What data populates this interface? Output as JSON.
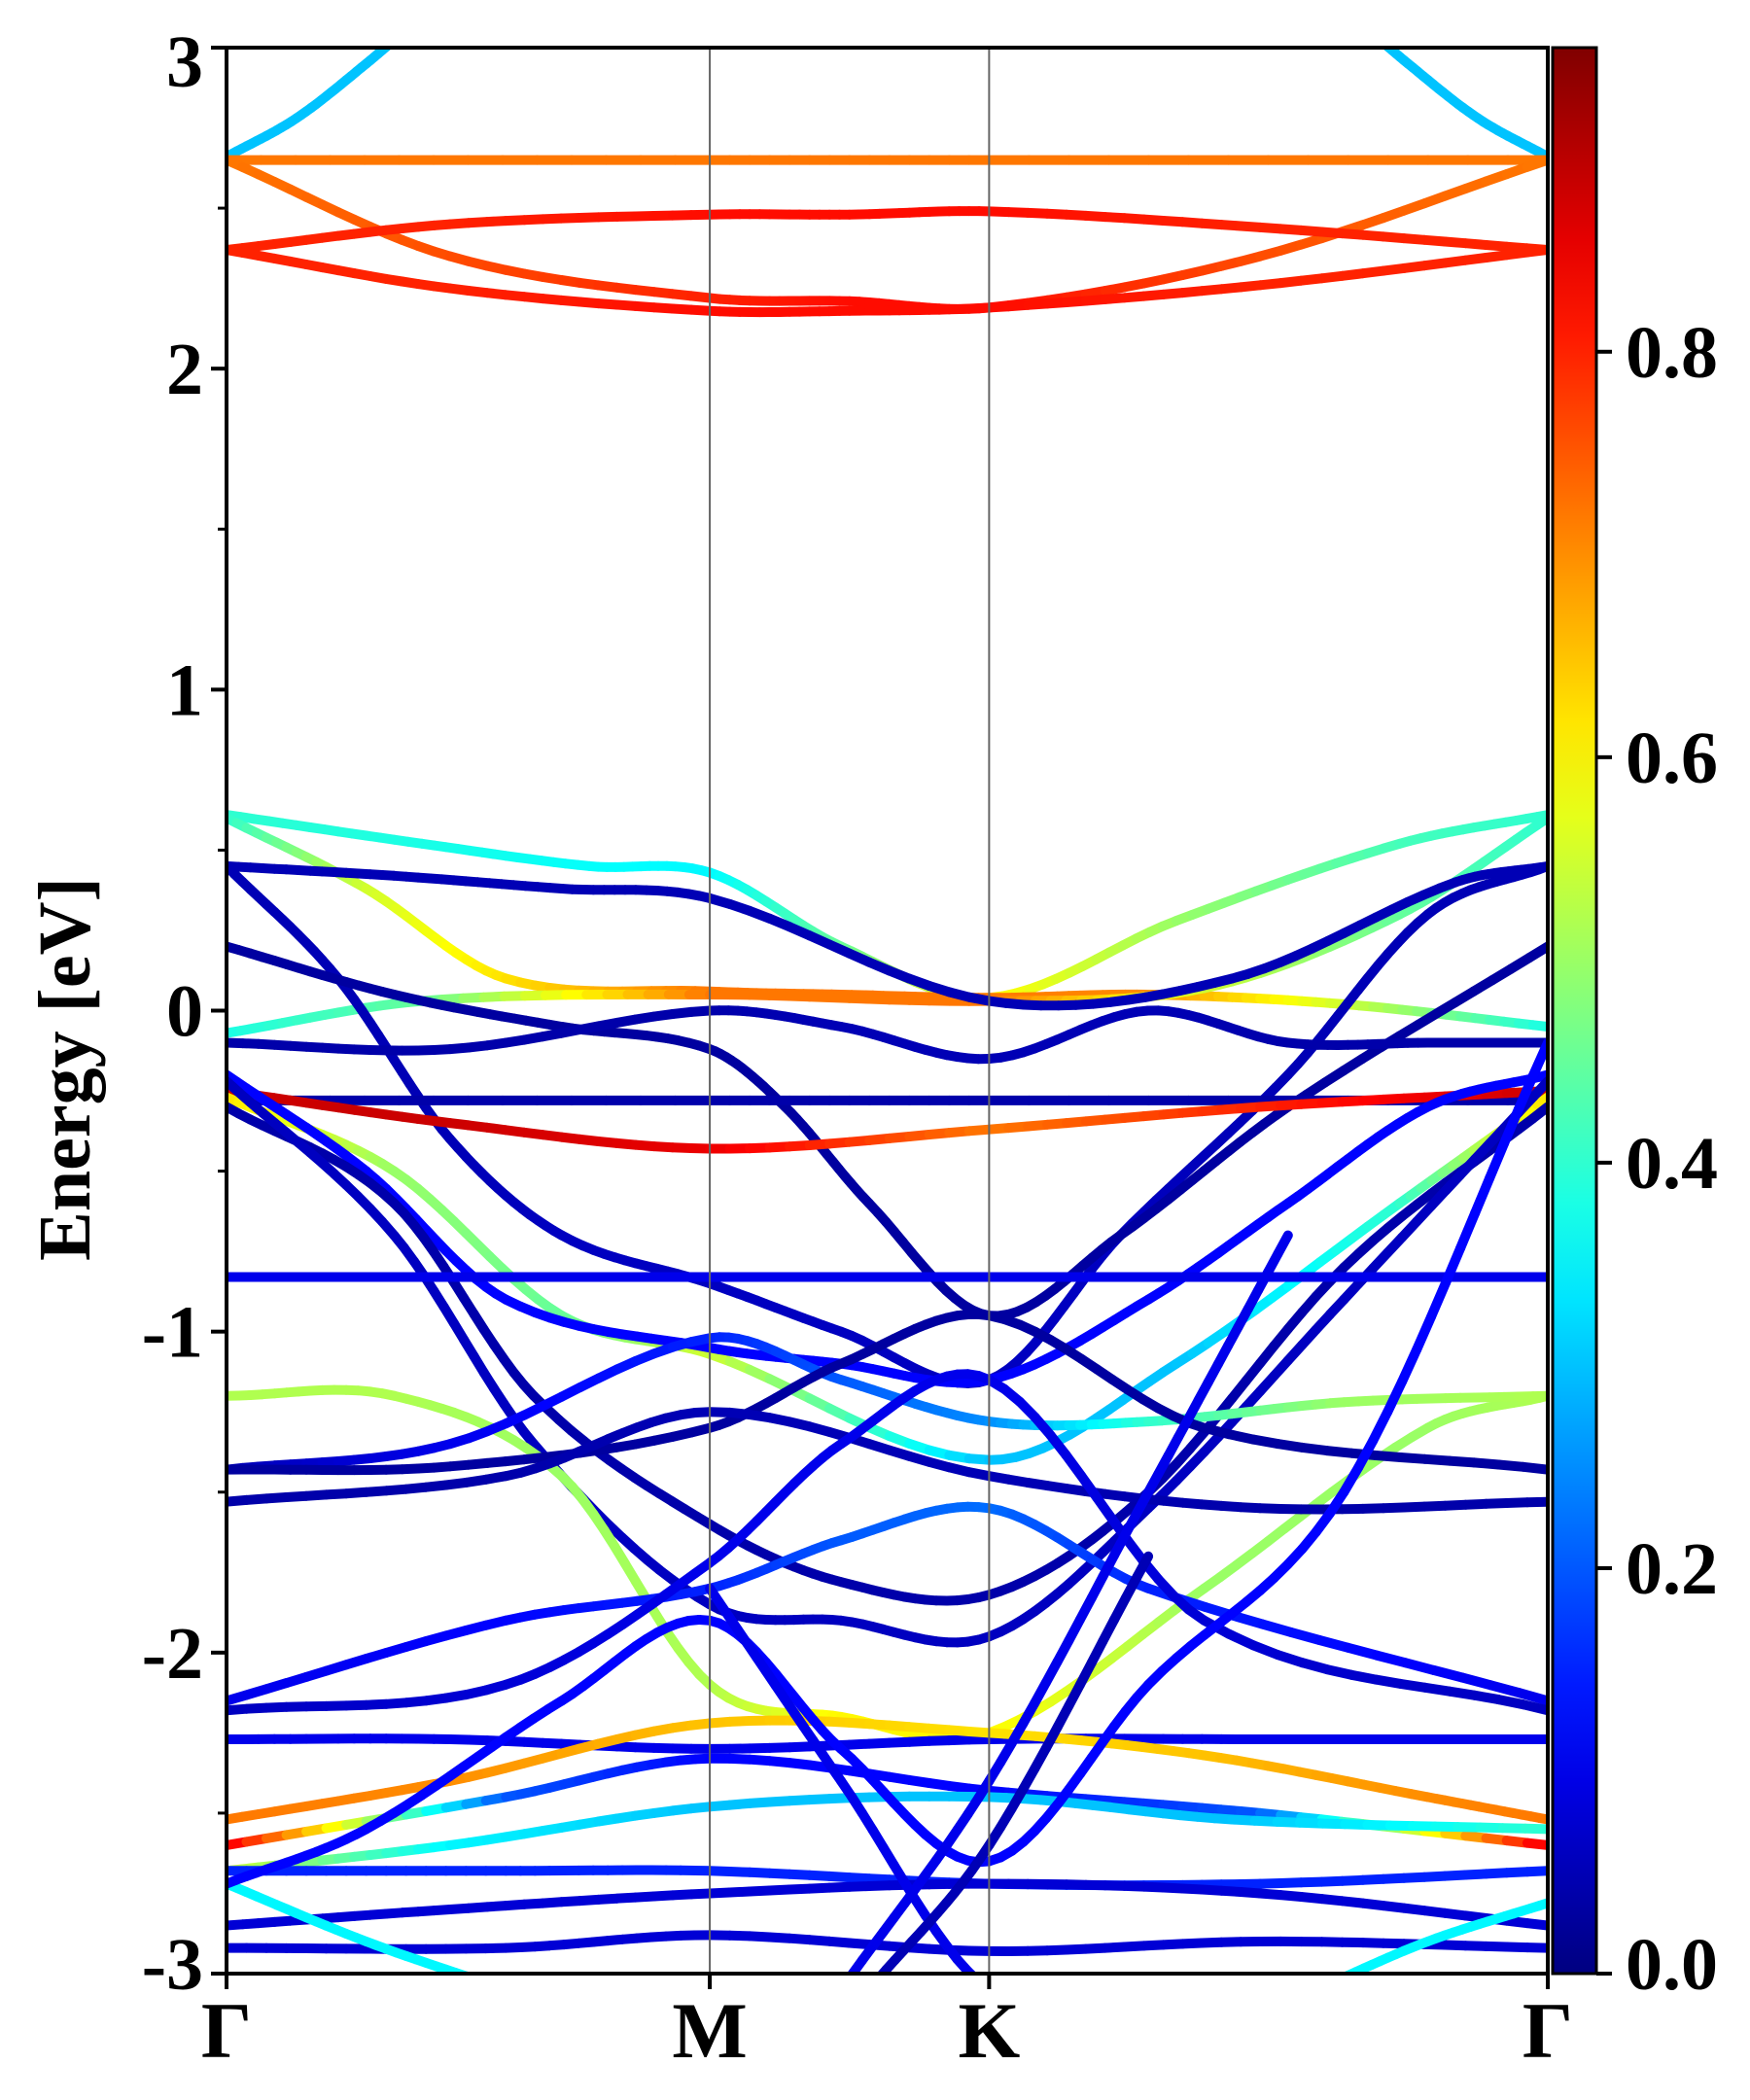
{
  "chart_data": {
    "type": "line",
    "subtype": "electronic band structure, color-weighted",
    "title": "",
    "xlabel": "",
    "ylabel": "Energy [eV]",
    "ylim": [
      -3,
      3
    ],
    "xlim": [
      0,
      4.73
    ],
    "y_ticks": [
      {
        "value": 3,
        "label": "3"
      },
      {
        "value": 2,
        "label": "2"
      },
      {
        "value": 1,
        "label": "1"
      },
      {
        "value": 0,
        "label": "0"
      },
      {
        "value": -1,
        "label": "-1"
      },
      {
        "value": -2,
        "label": "-2"
      },
      {
        "value": -3,
        "label": "-3"
      }
    ],
    "y_minor_step": 0.5,
    "x_ticks": [
      {
        "value": 0.0,
        "label": "Γ"
      },
      {
        "value": 1.73,
        "label": "M"
      },
      {
        "value": 2.73,
        "label": "K"
      },
      {
        "value": 4.73,
        "label": "Γ"
      }
    ],
    "vertical_lines_at": [
      1.73,
      2.73
    ],
    "grid": false,
    "legend": "none",
    "colorbar": {
      "colormap": "jet",
      "range": [
        0,
        0.95
      ],
      "ticks": [
        {
          "value": 0.0,
          "label": "0.0"
        },
        {
          "value": 0.2,
          "label": "0.2"
        },
        {
          "value": 0.4,
          "label": "0.4"
        },
        {
          "value": 0.6,
          "label": "0.6"
        },
        {
          "value": 0.8,
          "label": "0.8"
        }
      ]
    },
    "series": [
      {
        "x": [
          0,
          0.25,
          0.5,
          0.7
        ],
        "y": [
          2.66,
          2.78,
          2.95,
          3.1
        ],
        "w": [
          0.3,
          0.3,
          0.3,
          0.3
        ]
      },
      {
        "x": [
          4.73,
          4.48,
          4.23,
          4.03
        ],
        "y": [
          2.66,
          2.78,
          2.95,
          3.1
        ],
        "w": [
          0.3,
          0.3,
          0.3,
          0.3
        ]
      },
      {
        "x": [
          0,
          1.73,
          2.73,
          4.73
        ],
        "y": [
          2.65,
          2.65,
          2.65,
          2.65
        ],
        "w": [
          0.72,
          0.72,
          0.72,
          0.72
        ]
      },
      {
        "x": [
          0,
          0.8,
          1.73,
          2.23,
          2.73,
          3.7,
          4.73
        ],
        "y": [
          2.65,
          2.35,
          2.22,
          2.21,
          2.19,
          2.35,
          2.65
        ],
        "w": [
          0.72,
          0.76,
          0.8,
          0.82,
          0.82,
          0.76,
          0.72
        ]
      },
      {
        "x": [
          0,
          0.8,
          1.73,
          2.23,
          2.73,
          3.7,
          4.73
        ],
        "y": [
          2.37,
          2.45,
          2.48,
          2.48,
          2.49,
          2.44,
          2.37
        ],
        "w": [
          0.8,
          0.8,
          0.82,
          0.82,
          0.82,
          0.8,
          0.8
        ]
      },
      {
        "x": [
          0,
          0.8,
          1.73,
          2.23,
          2.73,
          3.7,
          4.73
        ],
        "y": [
          2.37,
          2.25,
          2.18,
          2.18,
          2.19,
          2.26,
          2.37
        ],
        "w": [
          0.8,
          0.8,
          0.82,
          0.82,
          0.82,
          0.8,
          0.8
        ]
      },
      {
        "x": [
          0,
          0.7,
          1.3,
          1.73,
          2.2,
          2.73,
          3.4,
          4.2,
          4.73
        ],
        "y": [
          0.61,
          0.52,
          0.45,
          0.43,
          0.2,
          0.04,
          0.28,
          0.52,
          0.61
        ],
        "w": [
          0.4,
          0.38,
          0.36,
          0.35,
          0.45,
          0.6,
          0.5,
          0.42,
          0.4
        ]
      },
      {
        "x": [
          0,
          0.5,
          1.0,
          1.73,
          2.2,
          2.73,
          3.3,
          4.0,
          4.73
        ],
        "y": [
          0.6,
          0.38,
          0.1,
          0.06,
          0.05,
          0.04,
          0.05,
          0.02,
          -0.05
        ],
        "w": [
          0.4,
          0.55,
          0.62,
          0.72,
          0.72,
          0.72,
          0.7,
          0.55,
          0.38
        ]
      },
      {
        "x": [
          0,
          0.7,
          1.73,
          2.73,
          3.5,
          4.2,
          4.73
        ],
        "y": [
          -0.07,
          0.03,
          0.05,
          0.03,
          0.07,
          0.3,
          0.6
        ],
        "w": [
          0.38,
          0.45,
          0.72,
          0.72,
          0.55,
          0.45,
          0.4
        ]
      },
      {
        "x": [
          0,
          0.6,
          1.2,
          1.73,
          2.73,
          3.6,
          4.4,
          4.73
        ],
        "y": [
          0.45,
          0.42,
          0.38,
          0.35,
          0.03,
          0.1,
          0.4,
          0.45
        ],
        "w": [
          0.05,
          0.05,
          0.05,
          0.05,
          0.05,
          0.05,
          0.05,
          0.05
        ]
      },
      {
        "x": [
          0,
          0.4,
          0.8,
          1.2,
          1.73,
          2.2,
          2.73,
          3.2,
          3.8,
          4.3,
          4.73
        ],
        "y": [
          0.45,
          0.1,
          -0.4,
          -0.7,
          -0.85,
          -1.0,
          -1.15,
          -0.7,
          -0.2,
          0.3,
          0.45
        ],
        "w": [
          0.05,
          0.05,
          0.05,
          0.06,
          0.06,
          0.06,
          0.06,
          0.06,
          0.05,
          0.05,
          0.05
        ]
      },
      {
        "x": [
          0,
          0.6,
          1.2,
          1.73,
          2.0,
          2.3,
          2.73,
          3.2,
          3.8,
          4.73
        ],
        "y": [
          0.2,
          0.05,
          -0.05,
          -0.12,
          -0.3,
          -0.6,
          -0.95,
          -0.7,
          -0.3,
          0.2
        ],
        "w": [
          0.03,
          0.03,
          0.03,
          0.03,
          0.03,
          0.03,
          0.03,
          0.03,
          0.03,
          0.03
        ]
      },
      {
        "x": [
          0,
          0.8,
          1.73,
          2.2,
          2.73,
          3.3,
          3.8,
          4.3,
          4.73
        ],
        "y": [
          -0.1,
          -0.12,
          0.0,
          -0.05,
          -0.15,
          0.0,
          -0.1,
          -0.1,
          -0.1
        ],
        "w": [
          0.04,
          0.04,
          0.04,
          0.05,
          0.05,
          0.05,
          0.04,
          0.04,
          0.04
        ]
      },
      {
        "x": [
          0,
          1.73,
          2.73,
          4.73
        ],
        "y": [
          -0.28,
          -0.28,
          -0.28,
          -0.28
        ],
        "w": [
          0.04,
          0.04,
          0.04,
          0.04
        ]
      },
      {
        "x": [
          0,
          0.8,
          1.73,
          2.73,
          3.7,
          4.73
        ],
        "y": [
          -0.25,
          -0.35,
          -0.43,
          -0.37,
          -0.3,
          -0.25
        ],
        "w": [
          0.88,
          0.88,
          0.85,
          0.72,
          0.8,
          0.88
        ]
      },
      {
        "x": [
          0,
          0.6,
          1.2,
          1.73,
          2.73,
          3.4,
          4.2,
          4.73
        ],
        "y": [
          -0.27,
          -0.5,
          -0.95,
          -1.07,
          -1.4,
          -1.1,
          -0.6,
          -0.27
        ],
        "w": [
          0.62,
          0.5,
          0.45,
          0.55,
          0.3,
          0.3,
          0.4,
          0.62
        ]
      },
      {
        "x": [
          0,
          0.5,
          1.0,
          1.73,
          2.2,
          2.73,
          3.3,
          3.8,
          4.3,
          4.73
        ],
        "y": [
          -0.2,
          -0.5,
          -0.9,
          -1.05,
          -1.1,
          -1.15,
          -0.9,
          -0.6,
          -0.3,
          -0.2
        ],
        "w": [
          0.12,
          0.12,
          0.12,
          0.12,
          0.12,
          0.12,
          0.12,
          0.12,
          0.12,
          0.12
        ]
      },
      {
        "x": [
          0,
          0.6,
          1.1,
          1.73,
          2.2,
          2.73,
          3.3,
          4.0,
          4.73
        ],
        "y": [
          -0.3,
          -0.6,
          -1.2,
          -1.6,
          -1.78,
          -1.82,
          -1.5,
          -0.8,
          -0.3
        ],
        "w": [
          0.04,
          0.04,
          0.04,
          0.04,
          0.04,
          0.04,
          0.04,
          0.04,
          0.04
        ]
      },
      {
        "x": [
          0,
          0.6,
          1.1,
          1.73,
          2.2,
          2.73,
          3.3,
          4.0,
          4.73
        ],
        "y": [
          -0.22,
          -0.7,
          -1.35,
          -1.85,
          -1.9,
          -1.95,
          -1.55,
          -0.9,
          -0.22
        ],
        "w": [
          0.06,
          0.06,
          0.06,
          0.06,
          0.06,
          0.06,
          0.06,
          0.06,
          0.06
        ]
      },
      {
        "x": [
          0,
          1.73,
          2.73,
          4.73
        ],
        "y": [
          -0.83,
          -0.83,
          -0.83,
          -0.83
        ],
        "w": [
          0.1,
          0.1,
          0.1,
          0.1
        ]
      },
      {
        "x": [
          0,
          0.6,
          1.2,
          1.73,
          2.2,
          2.73,
          3.5,
          4.3,
          4.73
        ],
        "y": [
          -1.2,
          -1.2,
          -1.45,
          -2.1,
          -2.2,
          -2.25,
          -1.8,
          -1.3,
          -1.2
        ],
        "w": [
          0.52,
          0.52,
          0.5,
          0.52,
          0.6,
          0.6,
          0.5,
          0.5,
          0.52
        ]
      },
      {
        "x": [
          0,
          0.8,
          1.73,
          2.2,
          2.73,
          3.3,
          4.0,
          4.73
        ],
        "y": [
          -1.43,
          -1.35,
          -1.02,
          -1.15,
          -1.28,
          -1.28,
          -1.22,
          -1.2
        ],
        "w": [
          0.05,
          0.1,
          0.15,
          0.2,
          0.25,
          0.4,
          0.5,
          0.52
        ]
      },
      {
        "x": [
          0,
          0.8,
          1.73,
          2.2,
          2.73,
          3.5,
          4.73
        ],
        "y": [
          -1.43,
          -1.42,
          -1.3,
          -1.1,
          -0.95,
          -1.3,
          -1.43
        ],
        "w": [
          0.03,
          0.03,
          0.03,
          0.03,
          0.03,
          0.03,
          0.03
        ]
      },
      {
        "x": [
          0,
          1.0,
          1.73,
          2.73,
          3.7,
          4.73
        ],
        "y": [
          -1.53,
          -1.45,
          -1.25,
          -1.45,
          -1.55,
          -1.53
        ],
        "w": [
          0.04,
          0.04,
          0.05,
          0.05,
          0.04,
          0.04
        ]
      },
      {
        "x": [
          0,
          1.0,
          1.73,
          2.2,
          2.73,
          3.3,
          4.73
        ],
        "y": [
          -2.15,
          -1.9,
          -1.8,
          -1.65,
          -1.55,
          -1.8,
          -2.15
        ],
        "w": [
          0.1,
          0.12,
          0.15,
          0.2,
          0.22,
          0.15,
          0.1
        ]
      },
      {
        "x": [
          0,
          1.0,
          1.73,
          2.2,
          2.73,
          3.5,
          4.73
        ],
        "y": [
          -2.18,
          -2.1,
          -1.72,
          -1.35,
          -1.15,
          -1.9,
          -2.18
        ],
        "w": [
          0.06,
          0.08,
          0.1,
          0.1,
          0.1,
          0.08,
          0.06
        ]
      },
      {
        "x": [
          0,
          0.8,
          1.73,
          2.73,
          3.7,
          4.73
        ],
        "y": [
          -2.27,
          -2.27,
          -2.3,
          -2.27,
          -2.27,
          -2.27
        ],
        "w": [
          0.1,
          0.1,
          0.1,
          0.1,
          0.1,
          0.1
        ]
      },
      {
        "x": [
          0,
          0.8,
          1.73,
          2.73,
          3.5,
          4.3,
          4.73
        ],
        "y": [
          -2.52,
          -2.4,
          -2.22,
          -2.25,
          -2.32,
          -2.45,
          -2.52
        ],
        "w": [
          0.72,
          0.7,
          0.65,
          0.62,
          0.65,
          0.7,
          0.72
        ]
      },
      {
        "x": [
          0,
          1.0,
          1.73,
          2.73,
          3.7,
          4.73
        ],
        "y": [
          -2.6,
          -2.45,
          -2.33,
          -2.43,
          -2.5,
          -2.6
        ],
        "w": [
          0.85,
          0.2,
          0.12,
          0.12,
          0.2,
          0.85
        ]
      },
      {
        "x": [
          0,
          0.8,
          1.73,
          2.73,
          3.6,
          4.73
        ],
        "y": [
          -2.68,
          -2.6,
          -2.48,
          -2.45,
          -2.52,
          -2.55
        ],
        "w": [
          0.55,
          0.35,
          0.3,
          0.3,
          0.3,
          0.4
        ]
      },
      {
        "x": [
          0,
          1.0,
          1.73,
          2.73,
          3.7,
          4.73
        ],
        "y": [
          -2.68,
          -2.68,
          -2.68,
          -2.72,
          -2.72,
          -2.68
        ],
        "w": [
          0.15,
          0.15,
          0.15,
          0.15,
          0.15,
          0.15
        ]
      },
      {
        "x": [
          0,
          0.8,
          1.73,
          2.73,
          3.7,
          4.73
        ],
        "y": [
          -2.85,
          -2.8,
          -2.75,
          -2.72,
          -2.75,
          -2.85
        ],
        "w": [
          0.08,
          0.08,
          0.08,
          0.08,
          0.08,
          0.08
        ]
      },
      {
        "x": [
          0,
          1.0,
          1.73,
          2.73,
          3.7,
          4.73
        ],
        "y": [
          -2.92,
          -2.92,
          -2.88,
          -2.93,
          -2.9,
          -2.92
        ],
        "w": [
          0.08,
          0.08,
          0.08,
          0.08,
          0.08,
          0.08
        ]
      },
      {
        "x": [
          0,
          0.5,
          1.0
        ],
        "y": [
          -2.72,
          -2.9,
          -3.05
        ],
        "w": [
          0.35,
          0.35,
          0.35
        ]
      },
      {
        "x": [
          4.73,
          4.3,
          3.9
        ],
        "y": [
          -2.78,
          -2.9,
          -3.05
        ],
        "w": [
          0.35,
          0.35,
          0.35
        ]
      },
      {
        "x": [
          0,
          0.5,
          1.2,
          1.73,
          2.2,
          2.73,
          3.3,
          4.0,
          4.73
        ],
        "y": [
          -2.72,
          -2.55,
          -2.15,
          -1.9,
          -2.3,
          -2.65,
          -2.1,
          -1.5,
          -0.1
        ],
        "w": [
          0.12,
          0.12,
          0.12,
          0.12,
          0.12,
          0.12,
          0.12,
          0.12,
          0.12
        ]
      },
      {
        "x": [
          2.2,
          2.73,
          3.3,
          3.8
        ],
        "y": [
          -3.05,
          -2.4,
          -1.5,
          -0.7
        ],
        "w": [
          0.1,
          0.1,
          0.1,
          0.1
        ]
      },
      {
        "x": [
          1.73,
          2.2,
          2.73,
          3.3,
          3.8
        ],
        "y": [
          -1.8,
          -2.4,
          -3.05,
          -3.05,
          -3.05
        ],
        "w": [
          0.1,
          0.1,
          0.1,
          0.1,
          0.1
        ]
      },
      {
        "x": [
          2.3,
          2.73,
          3.3
        ],
        "y": [
          -3.05,
          -2.6,
          -1.7
        ],
        "w": [
          0.05,
          0.05,
          0.05
        ]
      }
    ]
  }
}
